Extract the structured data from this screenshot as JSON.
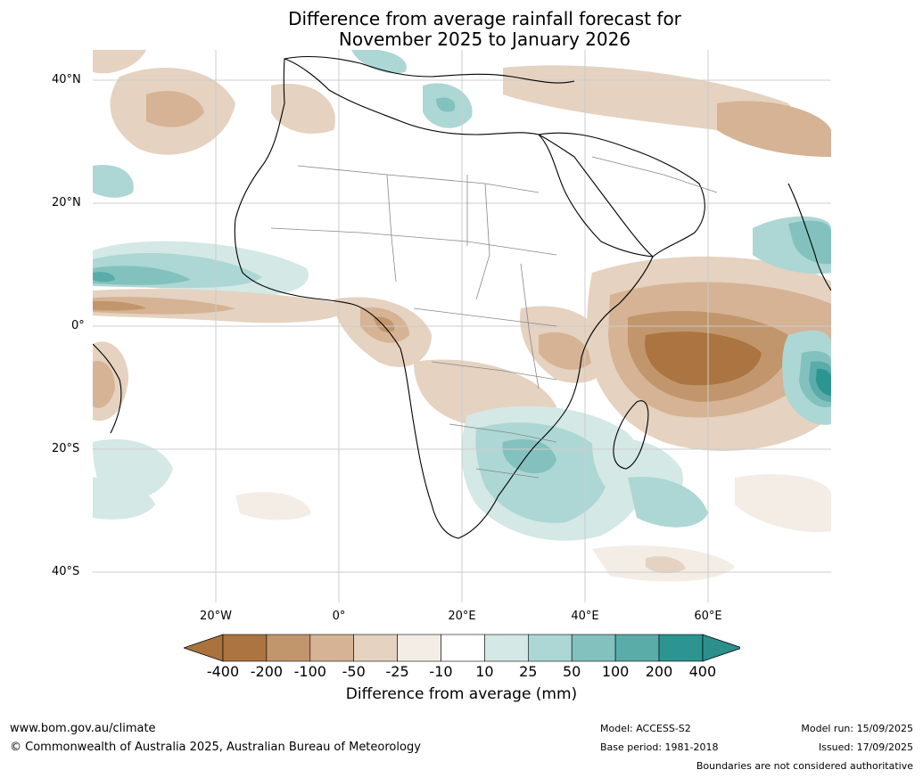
{
  "title": {
    "line1": "Difference from average rainfall forecast for",
    "line2": "November 2025 to January 2026"
  },
  "map": {
    "lat_labels": [
      "40°N",
      "20°N",
      "0°",
      "20°S",
      "40°S"
    ],
    "lon_labels": [
      "20°W",
      "0°",
      "20°E",
      "40°E",
      "60°E"
    ],
    "extent": {
      "lon": [
        -40,
        80
      ],
      "lat": [
        -45,
        45
      ]
    }
  },
  "colorbar": {
    "title": "Difference from average (mm)",
    "ticks": [
      "-400",
      "-200",
      "-100",
      "-50",
      "-25",
      "-10",
      "10",
      "25",
      "50",
      "100",
      "200",
      "400"
    ],
    "colors": [
      "#a8733c",
      "#ab7440",
      "#c2966c",
      "#d5b394",
      "#e5d2c0",
      "#f3ede6",
      "#ffffff",
      "#d4e8e6",
      "#acd7d4",
      "#83c1be",
      "#5aaca9",
      "#2c9592",
      "#2b8f8c"
    ]
  },
  "footer": {
    "website": "www.bom.gov.au/climate",
    "copyright": "© Commonwealth of Australia 2025, Australian Bureau of Meteorology",
    "model": "Model: ACCESS-S2",
    "base_period": "Base period: 1981-2018",
    "model_run": "Model run: 15/09/2025",
    "issued": "Issued: 17/09/2025",
    "disclaimer": "Boundaries are not considered authoritative"
  }
}
